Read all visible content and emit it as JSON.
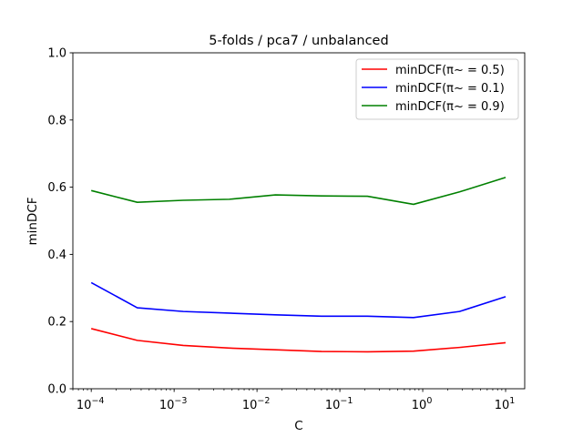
{
  "chart_data": {
    "type": "line",
    "title": "5-folds / pca7 / unbalanced",
    "xlabel": "C",
    "ylabel": "minDCF",
    "xscale": "log",
    "xlim": [
      6e-05,
      17
    ],
    "ylim": [
      0.0,
      1.0
    ],
    "grid": false,
    "legend_position": "top-right",
    "x": [
      0.0001,
      0.000359,
      0.00129,
      0.00464,
      0.0167,
      0.0599,
      0.215,
      0.774,
      2.78,
      10
    ],
    "x_tick_labels": [
      {
        "base": "10",
        "exp": "−4",
        "value": 0.0001
      },
      {
        "base": "10",
        "exp": "−3",
        "value": 0.001
      },
      {
        "base": "10",
        "exp": "−2",
        "value": 0.01
      },
      {
        "base": "10",
        "exp": "−1",
        "value": 0.1
      },
      {
        "base": "10",
        "exp": "0",
        "value": 1
      },
      {
        "base": "10",
        "exp": "1",
        "value": 10
      }
    ],
    "y_ticks": [
      0.0,
      0.2,
      0.4,
      0.6,
      0.8,
      1.0
    ],
    "y_tick_labels": [
      "0.0",
      "0.2",
      "0.4",
      "0.6",
      "0.8",
      "1.0"
    ],
    "series": [
      {
        "name": "minDCF(π~ = 0.5)",
        "color": "#ff0000",
        "values": [
          0.179,
          0.144,
          0.129,
          0.121,
          0.116,
          0.111,
          0.11,
          0.112,
          0.123,
          0.137
        ]
      },
      {
        "name": "minDCF(π~ = 0.1)",
        "color": "#0000ff",
        "values": [
          0.316,
          0.241,
          0.23,
          0.225,
          0.22,
          0.216,
          0.216,
          0.212,
          0.23,
          0.274
        ]
      },
      {
        "name": "minDCF(π~ = 0.9)",
        "color": "#008000",
        "values": [
          0.59,
          0.555,
          0.561,
          0.564,
          0.577,
          0.574,
          0.573,
          0.549,
          0.586,
          0.629
        ]
      }
    ]
  }
}
